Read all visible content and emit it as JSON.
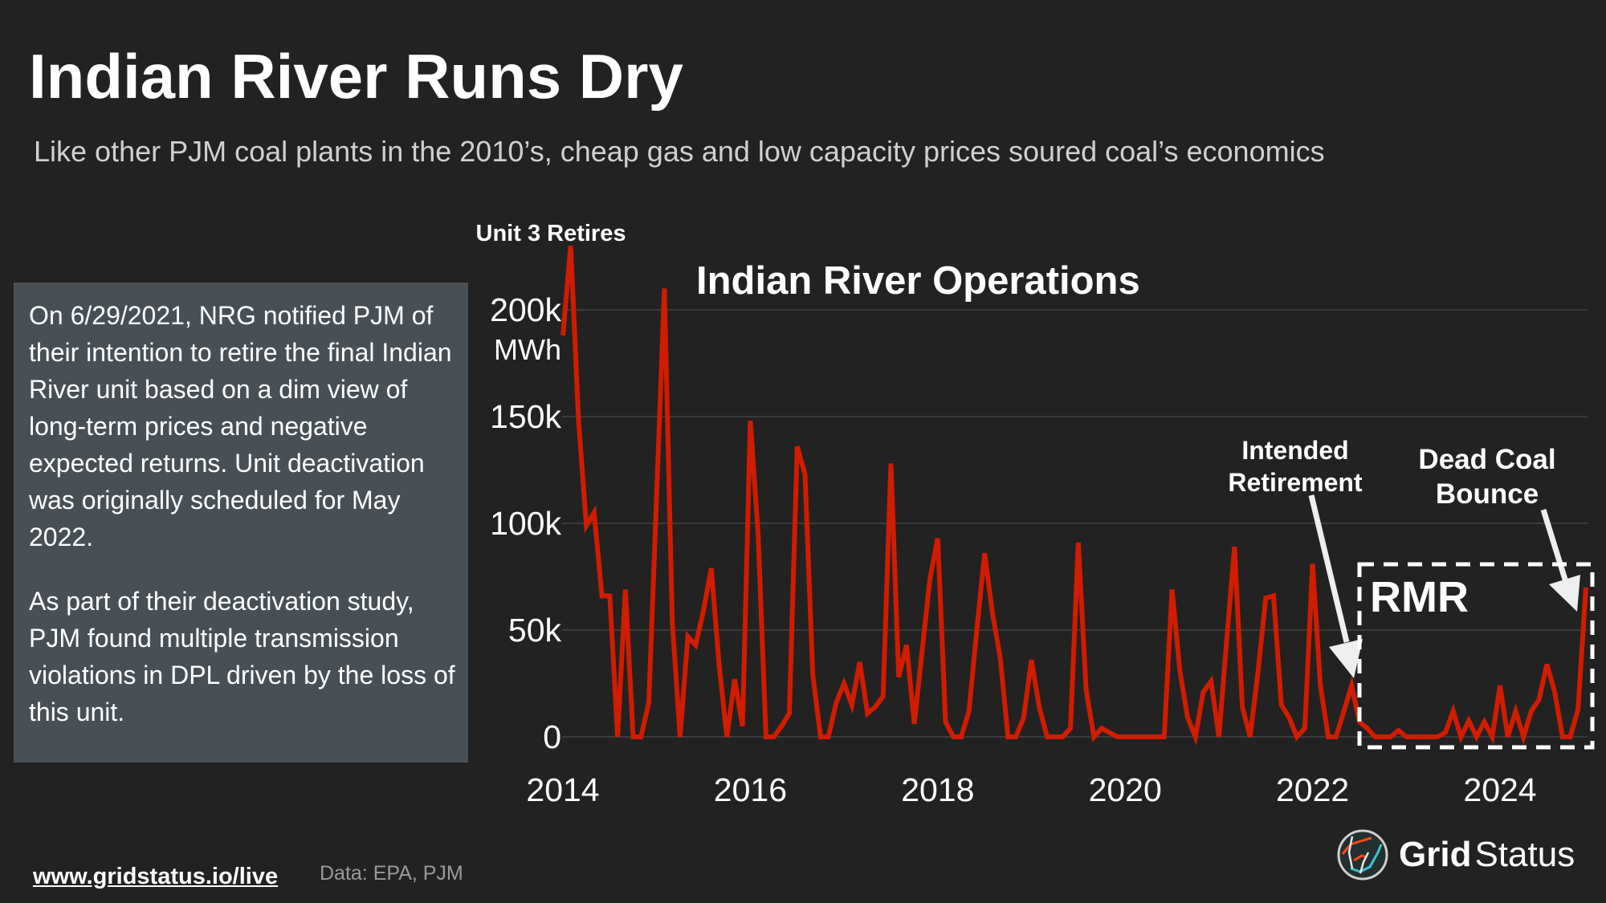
{
  "header": {
    "title": "Indian River Runs Dry",
    "subtitle": "Like other PJM coal plants in the 2010’s, cheap gas and low capacity prices soured coal’s economics"
  },
  "note": {
    "paragraphs": [
      "On 6/29/2021, NRG notified PJM of their intention to retire the final Indian River unit based on a dim view of long-term prices and negative expected returns. Unit deactivation was originally scheduled for May 2022.",
      "As part of their deactivation study, PJM found multiple transmission violations in DPL driven by the loss of this unit."
    ]
  },
  "footer": {
    "link": "www.gridstatus.io/live",
    "source": "Data: EPA, PJM"
  },
  "brand": {
    "name_bold": "Grid",
    "name_regular": "Status",
    "icon": "grid-status-logo-icon"
  },
  "colors": {
    "background": "#222222",
    "line": "#d01c00",
    "note_box": "#485056",
    "grid": "#3a3a3a"
  },
  "chart_data": {
    "type": "line",
    "title": "Indian River Operations",
    "ylabel": "MWh",
    "ylim": [
      0,
      230000
    ],
    "yticks": [
      0,
      50000,
      100000,
      150000,
      200000
    ],
    "ytick_labels": [
      "0",
      "50k",
      "100k",
      "150k",
      "200k"
    ],
    "xticks": [
      "2014",
      "2016",
      "2018",
      "2020",
      "2022",
      "2024"
    ],
    "xlim": [
      "2014-01",
      "2024-12"
    ],
    "grid": "horizontal",
    "x": [
      "2014-01",
      "2014-02",
      "2014-03",
      "2014-04",
      "2014-05",
      "2014-06",
      "2014-07",
      "2014-08",
      "2014-09",
      "2014-10",
      "2014-11",
      "2014-12",
      "2015-01",
      "2015-02",
      "2015-03",
      "2015-04",
      "2015-05",
      "2015-06",
      "2015-07",
      "2015-08",
      "2015-09",
      "2015-10",
      "2015-11",
      "2015-12",
      "2016-01",
      "2016-02",
      "2016-03",
      "2016-04",
      "2016-05",
      "2016-06",
      "2016-07",
      "2016-08",
      "2016-09",
      "2016-10",
      "2016-11",
      "2016-12",
      "2017-01",
      "2017-02",
      "2017-03",
      "2017-04",
      "2017-05",
      "2017-06",
      "2017-07",
      "2017-08",
      "2017-09",
      "2017-10",
      "2017-11",
      "2017-12",
      "2018-01",
      "2018-02",
      "2018-03",
      "2018-04",
      "2018-05",
      "2018-06",
      "2018-07",
      "2018-08",
      "2018-09",
      "2018-10",
      "2018-11",
      "2018-12",
      "2019-01",
      "2019-02",
      "2019-03",
      "2019-04",
      "2019-05",
      "2019-06",
      "2019-07",
      "2019-08",
      "2019-09",
      "2019-10",
      "2019-11",
      "2019-12",
      "2020-01",
      "2020-02",
      "2020-03",
      "2020-04",
      "2020-05",
      "2020-06",
      "2020-07",
      "2020-08",
      "2020-09",
      "2020-10",
      "2020-11",
      "2020-12",
      "2021-01",
      "2021-02",
      "2021-03",
      "2021-04",
      "2021-05",
      "2021-06",
      "2021-07",
      "2021-08",
      "2021-09",
      "2021-10",
      "2021-11",
      "2021-12",
      "2022-01",
      "2022-02",
      "2022-03",
      "2022-04",
      "2022-05",
      "2022-06",
      "2022-07",
      "2022-08",
      "2022-09",
      "2022-10",
      "2022-11",
      "2022-12",
      "2023-01",
      "2023-02",
      "2023-03",
      "2023-04",
      "2023-05",
      "2023-06",
      "2023-07",
      "2023-08",
      "2023-09",
      "2023-10",
      "2023-11",
      "2023-12",
      "2024-01",
      "2024-02",
      "2024-03",
      "2024-04",
      "2024-05",
      "2024-06",
      "2024-07",
      "2024-08",
      "2024-09",
      "2024-10",
      "2024-11",
      "2024-12"
    ],
    "series": [
      {
        "values": [
          188000,
          230000,
          148000,
          99000,
          105000,
          66000,
          66000,
          0,
          69000,
          0,
          0,
          16000,
          113000,
          210000,
          54000,
          0,
          47000,
          43000,
          59000,
          79000,
          34000,
          0,
          27000,
          5000,
          148000,
          95000,
          0,
          0,
          5000,
          11000,
          136000,
          123000,
          29000,
          0,
          0,
          16000,
          25000,
          15000,
          35000,
          11000,
          14000,
          19000,
          128000,
          28000,
          43000,
          6000,
          40000,
          74000,
          93000,
          7000,
          0,
          0,
          12000,
          50000,
          86000,
          58000,
          37000,
          0,
          0,
          9000,
          36000,
          14000,
          0,
          0,
          0,
          4000,
          91000,
          22000,
          0,
          4000,
          2000,
          0,
          0,
          0,
          0,
          0,
          0,
          0,
          69000,
          31000,
          9000,
          0,
          21000,
          26000,
          0,
          45000,
          89000,
          14000,
          0,
          30000,
          65000,
          66000,
          15000,
          9000,
          0,
          4000,
          81000,
          24000,
          0,
          0,
          12000,
          24000,
          7000,
          4000,
          0,
          0,
          0,
          3000,
          0,
          0,
          0,
          0,
          0,
          2000,
          12000,
          0,
          7500,
          0,
          7000,
          0,
          24000,
          0,
          12000,
          0,
          12000,
          17500,
          34000,
          21000,
          0,
          0,
          13000,
          70000
        ]
      }
    ],
    "annotations": [
      {
        "text": "Unit 3 Retires"
      },
      {
        "text": "Intended Retirement",
        "lines": [
          "Intended",
          "Retirement"
        ]
      },
      {
        "text": "Dead Coal Bounce",
        "lines": [
          "Dead Coal",
          "Bounce"
        ]
      },
      {
        "text": "RMR"
      }
    ]
  }
}
